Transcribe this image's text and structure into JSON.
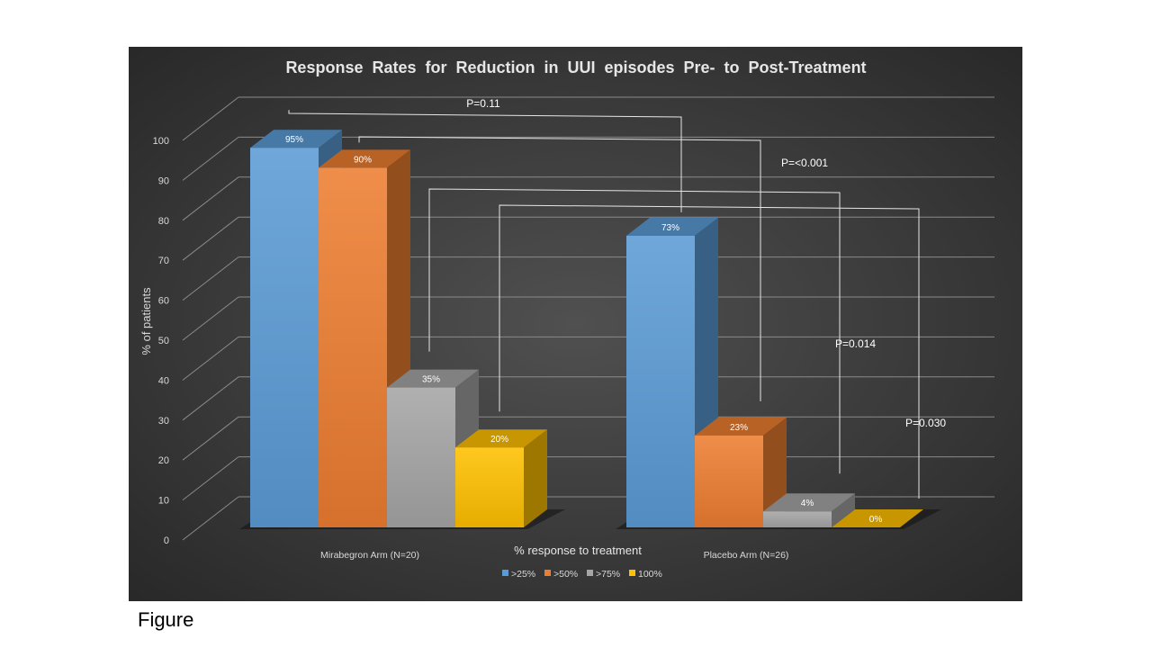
{
  "caption": "Figure",
  "colors": {
    "background_inner": "#505050",
    "background_outer": "#262626",
    "gridline": "#8a8a8a",
    "text": "#d9d9d9",
    "bracket": "#e6e6e6",
    "series": [
      "#5b9bd5",
      "#ed7d31",
      "#a5a5a5",
      "#ffc000"
    ]
  },
  "chart_data": {
    "type": "bar",
    "style": "3d-clustered-column",
    "title": "Response  Rates  for  Reduction  in  UUI  episodes  Pre-  to  Post-Treatment",
    "xlabel": "% response to treatment",
    "ylabel": "% of patients",
    "ylim": [
      0,
      100
    ],
    "yticks": [
      "0",
      "10",
      "20",
      "30",
      "40",
      "50",
      "60",
      "70",
      "80",
      "90",
      "100"
    ],
    "grid": true,
    "legend_position": "bottom",
    "categories": [
      "Mirabegron Arm (N=20)",
      "Placebo Arm (N=26)"
    ],
    "series": [
      {
        "name": ">25%",
        "values": [
          95,
          73
        ],
        "labels": [
          "95%",
          "73%"
        ]
      },
      {
        "name": ">50%",
        "values": [
          90,
          23
        ],
        "labels": [
          "90%",
          "23%"
        ]
      },
      {
        "name": ">75%",
        "values": [
          35,
          4
        ],
        "labels": [
          "35%",
          "4%"
        ]
      },
      {
        "name": "100%",
        "values": [
          20,
          0
        ],
        "labels": [
          "20%",
          "0%"
        ]
      }
    ],
    "annotations": [
      {
        "text": "P=0.11",
        "series": 0
      },
      {
        "text": "P=<0.001",
        "series": 1
      },
      {
        "text": "P=0.014",
        "series": 2
      },
      {
        "text": "P=0.030",
        "series": 3
      }
    ]
  }
}
